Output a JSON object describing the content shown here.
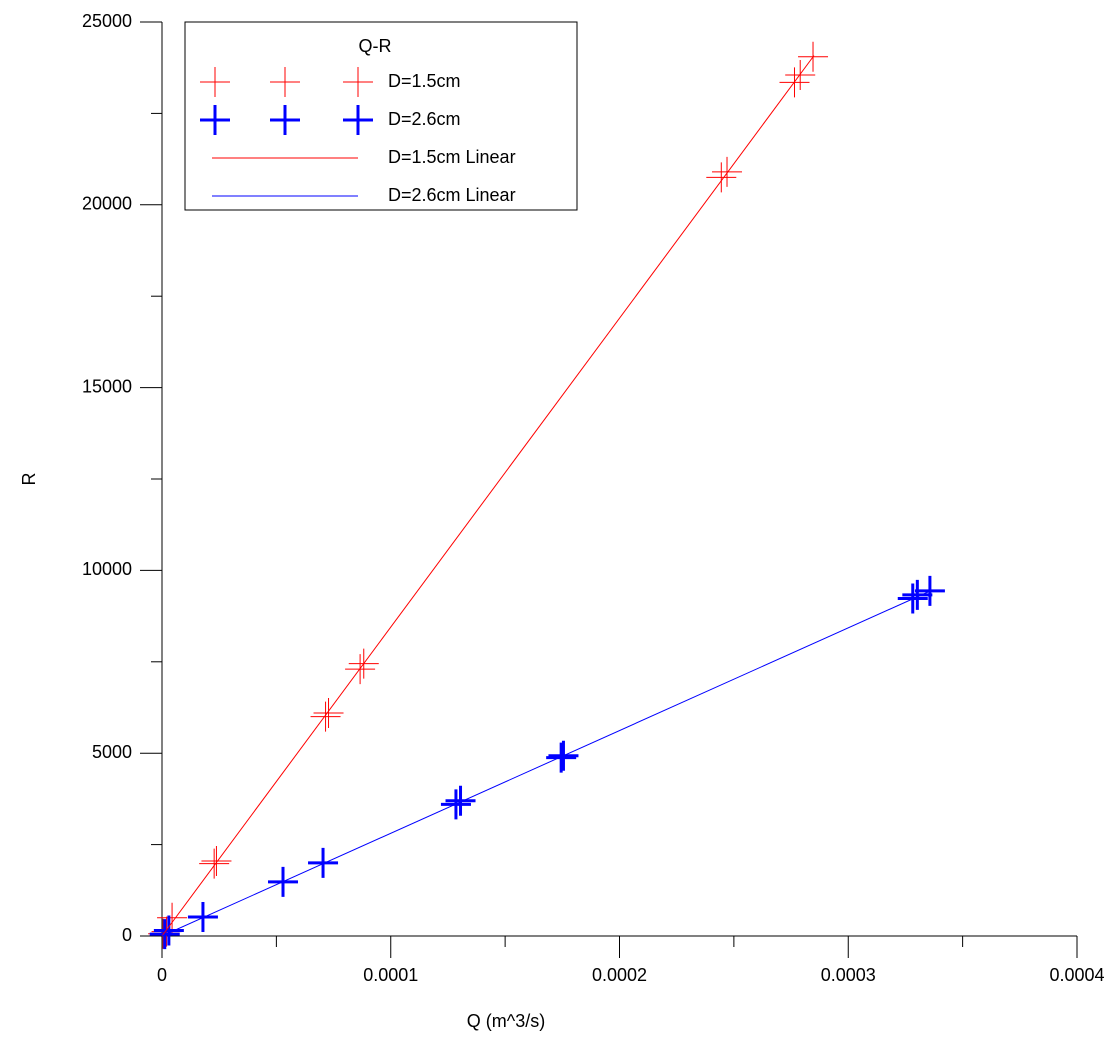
{
  "chart_data": {
    "type": "scatter",
    "x_label": "Q (m^3/s)",
    "y_label": "R",
    "legend_title": "Q-R",
    "legend": "top-left",
    "xlim": [
      0,
      0.0004
    ],
    "xticks": [
      0,
      0.0001,
      0.0002,
      0.0003,
      0.0004
    ],
    "xminorticks": [
      5e-05,
      0.00015,
      0.00025,
      0.00035
    ],
    "ylim": [
      0,
      25000
    ],
    "yticks": [
      0,
      5000,
      10000,
      15000,
      20000,
      25000
    ],
    "yminorticks": [
      2500,
      7500,
      12500,
      17500,
      22500
    ],
    "series": [
      {
        "name": "D=1.5cm",
        "kind": "marker",
        "color": "#ff0000",
        "marker_width": 1,
        "x": [
          5e-07,
          2e-06,
          4.4e-06,
          2.28e-05,
          2.38e-05,
          7.15e-05,
          7.28e-05,
          8.66e-05,
          8.82e-05,
          0.0002445,
          0.000247,
          0.0002765,
          0.000279,
          0.0002846
        ],
        "values": [
          60,
          120,
          500,
          1980,
          2050,
          6000,
          6100,
          7300,
          7450,
          20750,
          20900,
          23350,
          23550,
          24050
        ]
      },
      {
        "name": "D=2.6cm",
        "kind": "marker",
        "color": "#0000ff",
        "marker_width": 3,
        "x": [
          1.2e-06,
          3e-06,
          1.79e-05,
          5.29e-05,
          7.04e-05,
          0.0001285,
          0.0001305,
          0.0001745,
          0.0001755,
          0.0003282,
          0.0003302,
          0.0003357
        ],
        "values": [
          50,
          150,
          520,
          1480,
          2000,
          3600,
          3700,
          4880,
          4930,
          9230,
          9330,
          9440
        ]
      },
      {
        "name": "D=1.5cm Linear",
        "kind": "line",
        "color": "#ff0000",
        "x": [
          0,
          0.000285
        ],
        "values": [
          0,
          24080
        ]
      },
      {
        "name": "D=2.6cm Linear",
        "kind": "line",
        "color": "#0000ff",
        "x": [
          0,
          0.000336
        ],
        "values": [
          0,
          9440
        ]
      }
    ]
  }
}
